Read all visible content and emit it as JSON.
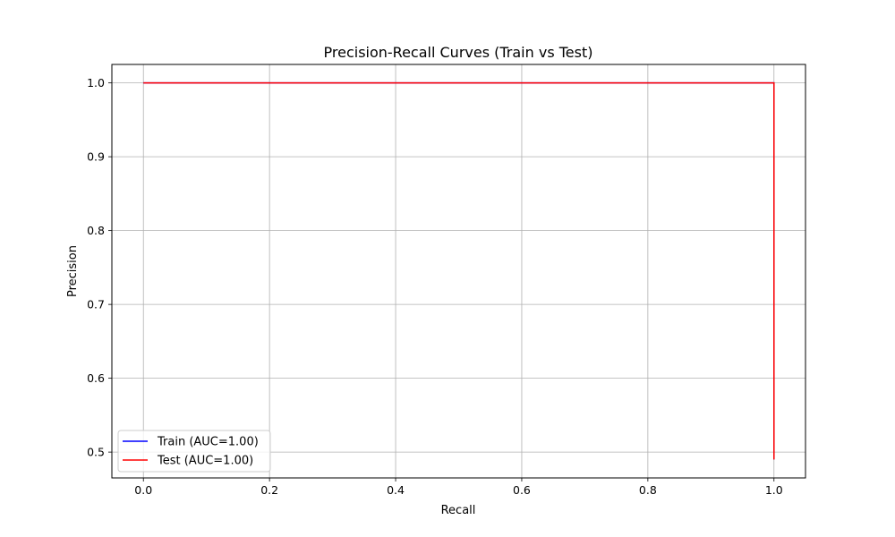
{
  "chart_data": {
    "type": "line",
    "title": "Precision-Recall Curves (Train vs Test)",
    "xlabel": "Recall",
    "ylabel": "Precision",
    "xlim": [
      -0.05,
      1.05
    ],
    "ylim": [
      0.465,
      1.025
    ],
    "x_ticks": [
      0.0,
      0.2,
      0.4,
      0.6,
      0.8,
      1.0
    ],
    "y_ticks": [
      0.5,
      0.6,
      0.7,
      0.8,
      0.9,
      1.0
    ],
    "x_tick_labels": [
      "0.0",
      "0.2",
      "0.4",
      "0.6",
      "0.8",
      "1.0"
    ],
    "y_tick_labels": [
      "0.5",
      "0.6",
      "0.7",
      "0.8",
      "0.9",
      "1.0"
    ],
    "grid": true,
    "legend_position": "lower-left",
    "series": [
      {
        "name": "Train (AUC=1.00)",
        "color": "#0000ff",
        "x": [
          0.0,
          1.0,
          1.0
        ],
        "y": [
          1.0,
          1.0,
          0.49
        ]
      },
      {
        "name": "Test (AUC=1.00)",
        "color": "#ff0000",
        "x": [
          0.0,
          1.0,
          1.0
        ],
        "y": [
          1.0,
          1.0,
          0.49
        ]
      }
    ]
  }
}
